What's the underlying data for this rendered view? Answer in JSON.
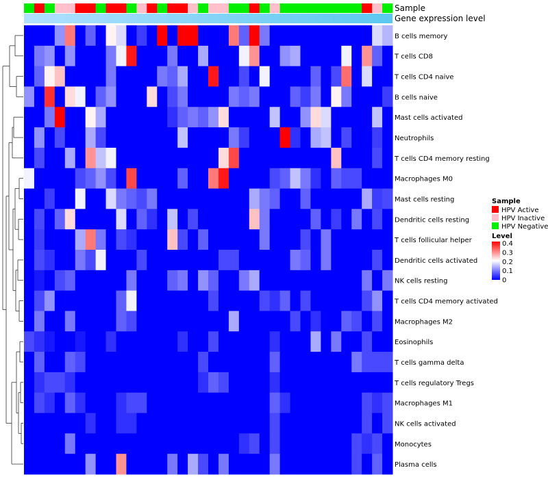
{
  "chart_data": {
    "type": "heatmap",
    "annotations": {
      "sample_label": "Sample",
      "gene_label": "Gene expression level"
    },
    "sample_groups": [
      "N",
      "A",
      "N",
      "I",
      "I",
      "A",
      "A",
      "N",
      "A",
      "A",
      "N",
      "I",
      "A",
      "N",
      "A",
      "A",
      "I",
      "N",
      "I",
      "I",
      "N",
      "N",
      "A",
      "N",
      "I",
      "N",
      "N",
      "N",
      "N",
      "N",
      "N",
      "N",
      "N",
      "A",
      "I",
      "N"
    ],
    "rows": [
      "B cells memory",
      "T cells CD8",
      "T cells CD4 naive",
      "B cells naive",
      "Mast cells activated",
      "Neutrophils",
      "T cells CD4 memory resting",
      "Macrophages M0",
      "Mast cells resting",
      "Dendritic cells resting",
      "T cells follicular helper",
      "Dendritic cells activated",
      "NK cells resting",
      "T cells CD4 memory activated",
      "Macrophages M2",
      "Eosinophils",
      "T cells gamma delta",
      "T cells regulatory  Tregs",
      "Macrophages M1",
      "NK cells activated",
      "Monocytes",
      "Plasma cells"
    ],
    "values": [
      [
        0,
        0,
        0,
        0.12,
        0.32,
        0,
        0.08,
        0,
        0.22,
        0.18,
        0,
        0.05,
        0,
        0.42,
        0,
        0.45,
        0.45,
        0,
        0,
        0,
        0.32,
        0.08,
        0.42,
        0.1,
        0,
        0,
        0,
        0,
        0,
        0,
        0,
        0,
        0,
        0,
        0.18,
        0.15
      ],
      [
        0,
        0.1,
        0.12,
        0,
        0.12,
        0,
        0,
        0,
        0.1,
        0.2,
        0.4,
        0,
        0,
        0,
        0.1,
        0,
        0,
        0.14,
        0,
        0,
        0,
        0.2,
        0.3,
        0,
        0,
        0.12,
        0.14,
        0,
        0,
        0,
        0,
        0.2,
        0,
        0.3,
        0.08,
        0
      ],
      [
        0,
        0.08,
        0.22,
        0.26,
        0,
        0,
        0,
        0,
        0.1,
        0,
        0,
        0,
        0,
        0.1,
        0.08,
        0.14,
        0,
        0,
        0.4,
        0,
        0,
        0.06,
        0,
        0.2,
        0,
        0,
        0,
        0,
        0.08,
        0,
        0.06,
        0.33,
        0,
        0.18,
        0,
        0
      ],
      [
        0.12,
        0,
        0.38,
        0,
        0.24,
        0.2,
        0,
        0.08,
        0.12,
        0,
        0,
        0,
        0.24,
        0,
        0.06,
        0.1,
        0,
        0,
        0,
        0,
        0.1,
        0.08,
        0.1,
        0,
        0,
        0,
        0.08,
        0.05,
        0.1,
        0,
        0.22,
        0.1,
        0,
        0,
        0,
        0.05
      ],
      [
        0,
        0,
        0.1,
        0.42,
        0,
        0,
        0.22,
        0.14,
        0,
        0,
        0,
        0,
        0,
        0,
        0.04,
        0.08,
        0.1,
        0.08,
        0.12,
        0.24,
        0,
        0,
        0,
        0,
        0.16,
        0,
        0,
        0.12,
        0.24,
        0.18,
        0,
        0,
        0,
        0,
        0.16,
        0
      ],
      [
        0,
        0.12,
        0,
        0.06,
        0,
        0,
        0.14,
        0.06,
        0,
        0,
        0,
        0,
        0,
        0,
        0,
        0.16,
        0,
        0,
        0,
        0,
        0.1,
        0.05,
        0,
        0,
        0,
        0.42,
        0.04,
        0,
        0.14,
        0.16,
        0,
        0.06,
        0,
        0,
        0.05,
        0
      ],
      [
        0,
        0.06,
        0,
        0,
        0.14,
        0,
        0.3,
        0.16,
        0.2,
        0,
        0,
        0,
        0,
        0,
        0,
        0,
        0,
        0,
        0,
        0.24,
        0.36,
        0,
        0,
        0,
        0,
        0,
        0,
        0,
        0,
        0,
        0.26,
        0,
        0,
        0,
        0.06,
        0
      ],
      [
        0.2,
        0,
        0,
        0,
        0,
        0.06,
        0.08,
        0.12,
        0.06,
        0,
        0.36,
        0,
        0,
        0,
        0,
        0.08,
        0,
        0,
        0.32,
        0.4,
        0,
        0,
        0,
        0,
        0.06,
        0.08,
        0.16,
        0.1,
        0.04,
        0,
        0.08,
        0.06,
        0.06,
        0,
        0,
        0
      ],
      [
        0,
        0,
        0.05,
        0,
        0,
        0.2,
        0,
        0,
        0.18,
        0.1,
        0.08,
        0.06,
        0.1,
        0,
        0,
        0,
        0,
        0,
        0,
        0,
        0,
        0,
        0.14,
        0.1,
        0.08,
        0,
        0,
        0.08,
        0,
        0,
        0,
        0,
        0,
        0.14,
        0.05,
        0.06
      ],
      [
        0,
        0.06,
        0,
        0.08,
        0.24,
        0,
        0,
        0,
        0,
        0.18,
        0,
        0.08,
        0.04,
        0,
        0.16,
        0,
        0.06,
        0,
        0,
        0,
        0,
        0,
        0.26,
        0.1,
        0,
        0,
        0,
        0,
        0.08,
        0,
        0.05,
        0,
        0.1,
        0,
        0.06,
        0
      ],
      [
        0,
        0.05,
        0,
        0,
        0,
        0.14,
        0.32,
        0.1,
        0,
        0.06,
        0.04,
        0,
        0,
        0,
        0.26,
        0.06,
        0,
        0.08,
        0,
        0,
        0,
        0,
        0,
        0.1,
        0,
        0,
        0,
        0.06,
        0,
        0.1,
        0,
        0,
        0,
        0,
        0,
        0
      ],
      [
        0,
        0.06,
        0.04,
        0,
        0,
        0.1,
        0.06,
        0.2,
        0,
        0,
        0,
        0.06,
        0,
        0,
        0,
        0,
        0,
        0,
        0,
        0.06,
        0.06,
        0,
        0,
        0,
        0,
        0,
        0.1,
        0.08,
        0,
        0.1,
        0,
        0,
        0,
        0,
        0.06,
        0
      ],
      [
        0,
        0.02,
        0,
        0.06,
        0.08,
        0,
        0,
        0,
        0,
        0,
        0.1,
        0,
        0,
        0,
        0.08,
        0.1,
        0,
        0.12,
        0.08,
        0,
        0,
        0.1,
        0.14,
        0,
        0,
        0,
        0,
        0,
        0,
        0,
        0,
        0,
        0,
        0.1,
        0,
        0.1
      ],
      [
        0,
        0.06,
        0.12,
        0,
        0,
        0,
        0,
        0,
        0,
        0.08,
        0.2,
        0,
        0,
        0,
        0,
        0,
        0,
        0,
        0.06,
        0,
        0,
        0,
        0,
        0.06,
        0.04,
        0.08,
        0,
        0.06,
        0,
        0,
        0,
        0,
        0,
        0.06,
        0.12,
        0
      ],
      [
        0,
        0.1,
        0,
        0,
        0.1,
        0,
        0,
        0,
        0,
        0.08,
        0.06,
        0,
        0,
        0,
        0,
        0,
        0,
        0,
        0,
        0,
        0.14,
        0,
        0,
        0,
        0,
        0,
        0.06,
        0,
        0.04,
        0,
        0,
        0.08,
        0.06,
        0,
        0.06,
        0
      ],
      [
        0.06,
        0.04,
        0.02,
        0,
        0,
        0.02,
        0,
        0,
        0.04,
        0,
        0,
        0,
        0,
        0,
        0,
        0.04,
        0,
        0,
        0.06,
        0,
        0,
        0,
        0,
        0,
        0.04,
        0,
        0,
        0,
        0.14,
        0,
        0.1,
        0,
        0,
        0.06,
        0,
        0
      ],
      [
        0,
        0.08,
        0,
        0,
        0.08,
        0.06,
        0,
        0,
        0,
        0,
        0,
        0,
        0,
        0,
        0,
        0,
        0,
        0.06,
        0,
        0,
        0,
        0,
        0,
        0,
        0.08,
        0,
        0,
        0,
        0,
        0,
        0,
        0,
        0.1,
        0.06,
        0.06,
        0.06
      ],
      [
        0,
        0.04,
        0.06,
        0.06,
        0.04,
        0,
        0,
        0,
        0,
        0,
        0,
        0,
        0,
        0,
        0,
        0,
        0,
        0.04,
        0.08,
        0.06,
        0,
        0,
        0,
        0,
        0.04,
        0,
        0,
        0,
        0,
        0,
        0,
        0,
        0,
        0,
        0,
        0
      ],
      [
        0,
        0.06,
        0.04,
        0,
        0.08,
        0.04,
        0,
        0,
        0,
        0.04,
        0.06,
        0.06,
        0,
        0,
        0,
        0,
        0,
        0,
        0,
        0,
        0,
        0,
        0,
        0,
        0.08,
        0.04,
        0,
        0,
        0,
        0,
        0,
        0,
        0,
        0.06,
        0.04,
        0.06
      ],
      [
        0,
        0,
        0,
        0,
        0,
        0,
        0.04,
        0,
        0,
        0.04,
        0.04,
        0,
        0,
        0,
        0,
        0,
        0,
        0,
        0,
        0,
        0,
        0,
        0,
        0,
        0.06,
        0,
        0,
        0,
        0,
        0,
        0,
        0,
        0,
        0.06,
        0,
        0.06
      ],
      [
        0,
        0,
        0,
        0,
        0.1,
        0,
        0,
        0,
        0,
        0,
        0,
        0,
        0,
        0,
        0,
        0,
        0,
        0,
        0,
        0,
        0,
        0.04,
        0.06,
        0,
        0.06,
        0,
        0,
        0,
        0,
        0,
        0,
        0,
        0.06,
        0.04,
        0.06,
        0
      ],
      [
        0,
        0,
        0,
        0,
        0,
        0,
        0.12,
        0,
        0,
        0.3,
        0,
        0,
        0,
        0,
        0.1,
        0,
        0.14,
        0.06,
        0,
        0.1,
        0,
        0,
        0,
        0,
        0.1,
        0,
        0,
        0,
        0,
        0,
        0,
        0,
        0.06,
        0,
        0.08,
        0
      ]
    ],
    "legend": {
      "sample": {
        "title": "Sample",
        "entries": [
          {
            "code": "A",
            "label": "HPV Active",
            "color": "#ff0000"
          },
          {
            "code": "I",
            "label": "HPV Inactive",
            "color": "#ffc0cb"
          },
          {
            "code": "N",
            "label": "HPV Negative",
            "color": "#00ee00"
          }
        ]
      },
      "level": {
        "title": "Level",
        "ticks": [
          "0.4",
          "0.3",
          "0.2",
          "0.1",
          "0"
        ],
        "tick_values": [
          0.4,
          0.3,
          0.2,
          0.1,
          0
        ],
        "range": [
          0,
          0.42
        ],
        "colors": {
          "low": "#0000ff",
          "mid": "#ffffff",
          "high": "#ff0000"
        }
      }
    },
    "gene_bar_colors": [
      "#b0e0ff",
      "#5bc8f0"
    ],
    "dendrogram": "hierarchical clustering of rows (left)"
  }
}
